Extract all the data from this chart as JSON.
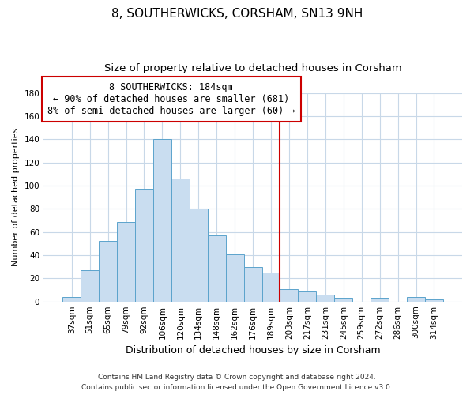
{
  "title": "8, SOUTHERWICKS, CORSHAM, SN13 9NH",
  "subtitle": "Size of property relative to detached houses in Corsham",
  "xlabel": "Distribution of detached houses by size in Corsham",
  "ylabel": "Number of detached properties",
  "categories": [
    "37sqm",
    "51sqm",
    "65sqm",
    "79sqm",
    "92sqm",
    "106sqm",
    "120sqm",
    "134sqm",
    "148sqm",
    "162sqm",
    "176sqm",
    "189sqm",
    "203sqm",
    "217sqm",
    "231sqm",
    "245sqm",
    "259sqm",
    "272sqm",
    "286sqm",
    "300sqm",
    "314sqm"
  ],
  "values": [
    4,
    27,
    52,
    69,
    97,
    140,
    106,
    80,
    57,
    41,
    30,
    25,
    11,
    9,
    6,
    3,
    0,
    3,
    0,
    4,
    2
  ],
  "bar_color": "#c9ddf0",
  "bar_edge_color": "#5ba3cc",
  "vline_index": 11.5,
  "vline_color": "#cc0000",
  "annotation_line1": "8 SOUTHERWICKS: 184sqm",
  "annotation_line2": "← 90% of detached houses are smaller (681)",
  "annotation_line3": "8% of semi-detached houses are larger (60) →",
  "annotation_box_color": "#ffffff",
  "annotation_box_edge": "#cc0000",
  "ylim": [
    0,
    180
  ],
  "yticks": [
    0,
    20,
    40,
    60,
    80,
    100,
    120,
    140,
    160,
    180
  ],
  "grid_color": "#c8d8e8",
  "background_color": "#ffffff",
  "footer_line1": "Contains HM Land Registry data © Crown copyright and database right 2024.",
  "footer_line2": "Contains public sector information licensed under the Open Government Licence v3.0.",
  "title_fontsize": 11,
  "subtitle_fontsize": 9.5,
  "xlabel_fontsize": 9,
  "ylabel_fontsize": 8,
  "tick_fontsize": 7.5,
  "annotation_fontsize": 8.5,
  "footer_fontsize": 6.5
}
